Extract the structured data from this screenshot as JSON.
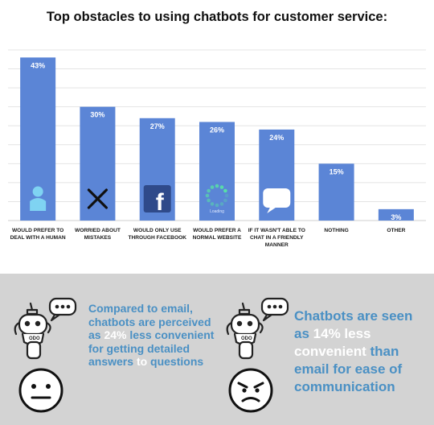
{
  "chart_data": {
    "type": "bar",
    "title": "Top obstacles to using chatbots for customer service:",
    "categories": [
      [
        "WOULD PREFER TO",
        "DEAL WITH A HUMAN"
      ],
      [
        "WORRIED ABOUT",
        "MISTAKES"
      ],
      [
        "WOULD ONLY USE",
        "THROUGH FACEBOOK"
      ],
      [
        "WOULD PREFER A",
        "NORMAL WEBSITE"
      ],
      [
        "IF IT WASN'T ABLE TO",
        "CHAT IN A FRIENDLY",
        "MANNER"
      ],
      [
        "NOTHING"
      ],
      [
        "OTHER"
      ]
    ],
    "values": [
      43,
      30,
      27,
      26,
      24,
      15,
      3
    ],
    "data_labels": [
      "43%",
      "30%",
      "27%",
      "26%",
      "24%",
      "15%",
      "3%"
    ],
    "bar_icons": [
      "person-icon",
      "x-mark-icon",
      "facebook-icon",
      "loading-spinner-icon",
      "speech-bubble-icon",
      "",
      ""
    ],
    "loading_text": "Loading",
    "ylim": [
      0,
      45
    ],
    "grid": true,
    "xlabel": "",
    "ylabel": "",
    "colors": {
      "bar": "#5b85d6",
      "grid": "#e4e4e4",
      "text": "#1a1a1a"
    }
  },
  "stats": {
    "stat1": {
      "parts": [
        "Compared to email, chatbots are perceived as",
        "24%",
        "less convenient for getting detailed answers",
        "to",
        "questions"
      ]
    },
    "stat2": {
      "parts": [
        "Chatbots are seen as",
        "14% less convenient",
        "than",
        "email for ease of communication"
      ]
    },
    "icons": [
      "robot-chat-icon",
      "neutral-face-icon",
      "robot-chat-icon",
      "angry-face-icon"
    ],
    "colors": {
      "panel": "#d3d3d3",
      "accent": "#4a90c4",
      "highlight": "#ffffff"
    }
  }
}
